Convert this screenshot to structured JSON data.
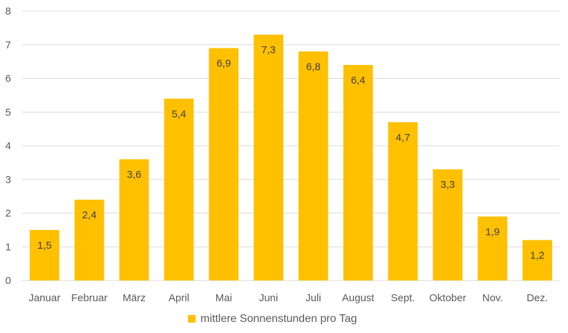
{
  "chart_data": {
    "type": "bar",
    "categories": [
      "Januar",
      "Februar",
      "März",
      "April",
      "Mai",
      "Juni",
      "Juli",
      "August",
      "Sept.",
      "Oktober",
      "Nov.",
      "Dez."
    ],
    "series": [
      {
        "name": "mittlere Sonnenstunden pro Tag",
        "values": [
          1.5,
          2.4,
          3.6,
          5.4,
          6.9,
          7.3,
          6.8,
          6.4,
          4.7,
          3.3,
          1.9,
          1.2
        ],
        "value_labels": [
          "1,5",
          "2,4",
          "3,6",
          "5,4",
          "6,9",
          "7,3",
          "6,8",
          "6,4",
          "4,7",
          "3,3",
          "1,9",
          "1,2"
        ],
        "color": "#FFC000"
      }
    ],
    "title": "",
    "xlabel": "",
    "ylabel": "",
    "ylim": [
      0,
      8
    ],
    "yticks": [
      "0",
      "1",
      "2",
      "3",
      "4",
      "5",
      "6",
      "7",
      "8"
    ],
    "grid": true,
    "gridColor": "#D9D9D9",
    "legend": "bottom"
  }
}
